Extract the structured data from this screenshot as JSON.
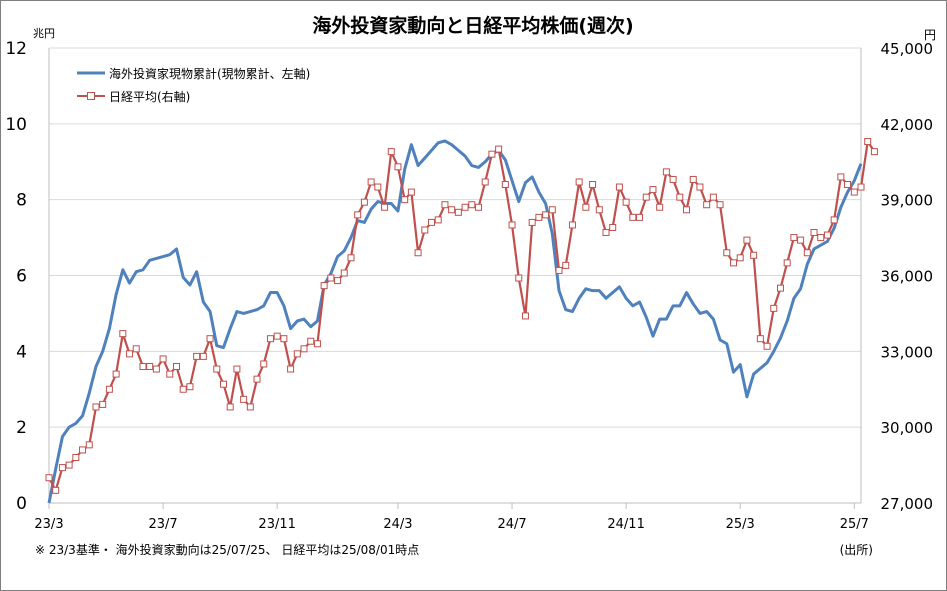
{
  "chart_data": {
    "type": "line",
    "title": "海外投資家動向と日経平均株価(週次)",
    "left_axis": {
      "unit": "兆円",
      "ylim": [
        0,
        12
      ],
      "ticks": [
        "0",
        "2",
        "4",
        "6",
        "8",
        "10",
        "12"
      ]
    },
    "right_axis": {
      "unit": "円",
      "ylim": [
        27000,
        45000
      ],
      "ticks": [
        "27,000",
        "30,000",
        "33,000",
        "36,000",
        "39,000",
        "42,000",
        "45,000"
      ]
    },
    "x_ticks": [
      {
        "label": "23/3",
        "index": 0
      },
      {
        "label": "23/7",
        "index": 17
      },
      {
        "label": "23/11",
        "index": 34
      },
      {
        "label": "24/3",
        "index": 52
      },
      {
        "label": "24/7",
        "index": 69
      },
      {
        "label": "24/11",
        "index": 86
      },
      {
        "label": "25/3",
        "index": 103
      },
      {
        "label": "25/7",
        "index": 120
      }
    ],
    "legend_position": "top-left",
    "series": [
      {
        "name": "海外投資家現物累計(現物累計、左軸)",
        "axis": "left",
        "color": "#4f81bd",
        "marker": "none",
        "values": [
          0.0,
          0.9,
          1.75,
          2.0,
          2.1,
          2.3,
          2.9,
          3.6,
          4.0,
          4.6,
          5.5,
          6.15,
          5.8,
          6.1,
          6.15,
          6.4,
          6.45,
          6.5,
          6.55,
          6.7,
          5.95,
          5.75,
          6.1,
          5.3,
          5.05,
          4.15,
          4.1,
          4.6,
          5.05,
          5.0,
          5.05,
          5.1,
          5.2,
          5.55,
          5.55,
          5.2,
          4.6,
          4.8,
          4.85,
          4.65,
          4.8,
          5.75,
          6.05,
          6.5,
          6.65,
          7.0,
          7.45,
          7.4,
          7.75,
          7.95,
          7.9,
          7.9,
          7.7,
          8.8,
          9.45,
          8.9,
          9.1,
          9.3,
          9.5,
          9.55,
          9.45,
          9.3,
          9.15,
          8.9,
          8.85,
          9.0,
          9.2,
          9.3,
          9.05,
          8.5,
          7.95,
          8.45,
          8.6,
          8.2,
          7.9,
          7.1,
          5.6,
          5.1,
          5.05,
          5.4,
          5.65,
          5.6,
          5.6,
          5.4,
          5.55,
          5.7,
          5.4,
          5.2,
          5.3,
          4.9,
          4.4,
          4.85,
          4.85,
          5.2,
          5.2,
          5.55,
          5.25,
          5.0,
          5.05,
          4.85,
          4.3,
          4.2,
          3.45,
          3.65,
          2.8,
          3.4,
          3.55,
          3.7,
          4.0,
          4.35,
          4.8,
          5.4,
          5.65,
          6.3,
          6.7,
          6.8,
          6.9,
          7.25,
          7.8,
          8.2,
          8.5,
          8.95
        ]
      },
      {
        "name": "日経平均(右軸)",
        "axis": "right",
        "color": "#c0504d",
        "marker": "open-square",
        "values": [
          28000,
          27500,
          28400,
          28500,
          28800,
          29100,
          29300,
          30800,
          30900,
          31500,
          32100,
          33700,
          32900,
          33100,
          32400,
          32400,
          32300,
          32700,
          32100,
          32400,
          31500,
          31600,
          32800,
          32800,
          33500,
          32300,
          31700,
          30800,
          32300,
          31100,
          30800,
          31900,
          32500,
          33500,
          33600,
          33500,
          32300,
          32900,
          33100,
          33400,
          33300,
          35600,
          35900,
          35800,
          36100,
          36700,
          38400,
          38900,
          39700,
          39500,
          38700,
          40900,
          40300,
          39000,
          39300,
          36900,
          37800,
          38100,
          38200,
          38800,
          38600,
          38500,
          38700,
          38800,
          38700,
          39700,
          40800,
          41000,
          39600,
          38000,
          35900,
          34400,
          38100,
          38300,
          38400,
          38600,
          36200,
          36400,
          38000,
          39700,
          38700,
          39600,
          38600,
          37700,
          37900,
          39500,
          38900,
          38300,
          38300,
          39100,
          39400,
          38700,
          40100,
          39800,
          39100,
          38600,
          39800,
          39500,
          38800,
          39100,
          38800,
          36900,
          36500,
          36700,
          37400,
          36800,
          33500,
          33200,
          34700,
          35500,
          36500,
          37500,
          37400,
          36900,
          37700,
          37500,
          37600,
          38200,
          39900,
          39600,
          39300,
          39500,
          41300,
          40900
        ]
      }
    ],
    "footnote": "※ 23/3基準・ 海外投資家動向は25/07/25、 日経平均は25/08/01時点",
    "source": "(出所)"
  }
}
